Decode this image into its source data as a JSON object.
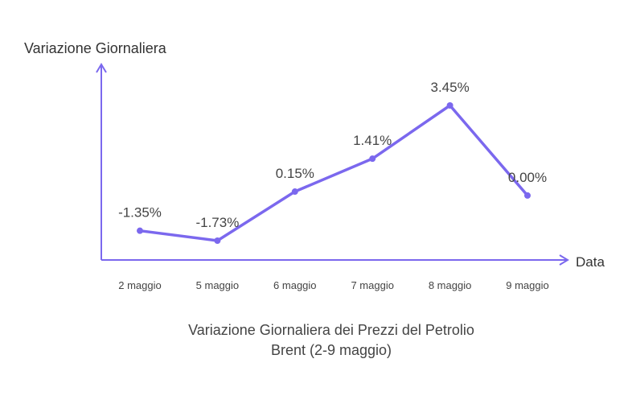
{
  "chart_data": {
    "type": "line",
    "title_lines": [
      "Variazione Giornaliera dei Prezzi del Petrolio",
      "Brent (2-9 maggio)"
    ],
    "ylabel": "Variazione Giornaliera",
    "xlabel": "Data",
    "categories": [
      "2 maggio",
      "5 maggio",
      "6 maggio",
      "7 maggio",
      "8 maggio",
      "9 maggio"
    ],
    "series": [
      {
        "values": [
          -1.35,
          -1.73,
          0.15,
          1.41,
          3.45,
          0.0
        ],
        "labels": [
          "-1.35%",
          "-1.73%",
          "0.15%",
          "1.41%",
          "3.45%",
          "0.00%"
        ]
      }
    ],
    "grid": false,
    "legend": "none",
    "colors": {
      "line": "#7b68ee",
      "axis": "#7b68ee"
    }
  }
}
